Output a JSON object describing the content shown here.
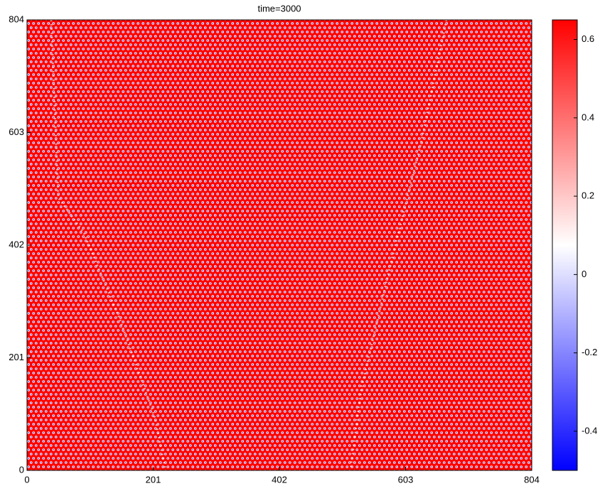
{
  "chart_data": {
    "type": "heatmap",
    "title": "time=3000",
    "xlim": [
      0,
      804
    ],
    "xticks": [
      0,
      201,
      402,
      603,
      804
    ],
    "ylim": [
      0,
      804
    ],
    "yticks": [
      0,
      201,
      402,
      603,
      804
    ],
    "colormap": [
      "#0000ff",
      "#ffffff",
      "#ff0000"
    ],
    "clim": [
      -0.5,
      0.65
    ],
    "cticks": [
      -0.4,
      -0.2,
      0,
      0.2,
      0.4,
      0.6
    ]
  }
}
